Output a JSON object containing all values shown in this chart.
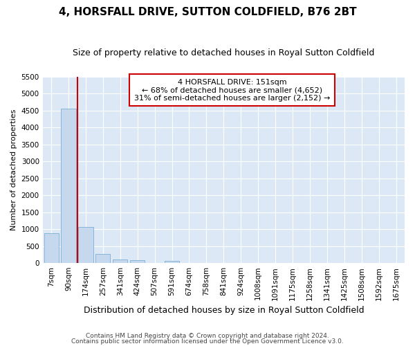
{
  "title": "4, HORSFALL DRIVE, SUTTON COLDFIELD, B76 2BT",
  "subtitle": "Size of property relative to detached houses in Royal Sutton Coldfield",
  "xlabel": "Distribution of detached houses by size in Royal Sutton Coldfield",
  "ylabel": "Number of detached properties",
  "footnote1": "Contains HM Land Registry data © Crown copyright and database right 2024.",
  "footnote2": "Contains public sector information licensed under the Open Government Licence v3.0.",
  "bar_labels": [
    "7sqm",
    "90sqm",
    "174sqm",
    "257sqm",
    "341sqm",
    "424sqm",
    "507sqm",
    "591sqm",
    "674sqm",
    "758sqm",
    "841sqm",
    "924sqm",
    "1008sqm",
    "1091sqm",
    "1175sqm",
    "1258sqm",
    "1341sqm",
    "1425sqm",
    "1508sqm",
    "1592sqm",
    "1675sqm"
  ],
  "bar_values": [
    880,
    4560,
    1060,
    275,
    95,
    80,
    0,
    55,
    0,
    0,
    0,
    0,
    0,
    0,
    0,
    0,
    0,
    0,
    0,
    0,
    0
  ],
  "bar_color": "#c5d8ee",
  "bar_edge_color": "#7aafd4",
  "ylim_max": 5500,
  "yticks": [
    0,
    500,
    1000,
    1500,
    2000,
    2500,
    3000,
    3500,
    4000,
    4500,
    5000,
    5500
  ],
  "vline_x": 1.5,
  "vline_color": "#cc0000",
  "annot_line1": "4 HORSFALL DRIVE: 151sqm",
  "annot_line2": "← 68% of detached houses are smaller (4,652)",
  "annot_line3": "31% of semi-detached houses are larger (2,152) →",
  "plot_bg_color": "#dce8f5",
  "fig_bg_color": "#ffffff",
  "grid_color": "#ffffff",
  "title_fontsize": 11,
  "subtitle_fontsize": 9,
  "xlabel_fontsize": 9,
  "ylabel_fontsize": 8,
  "tick_fontsize": 7.5,
  "annot_fontsize": 8,
  "footnote_fontsize": 6.5
}
